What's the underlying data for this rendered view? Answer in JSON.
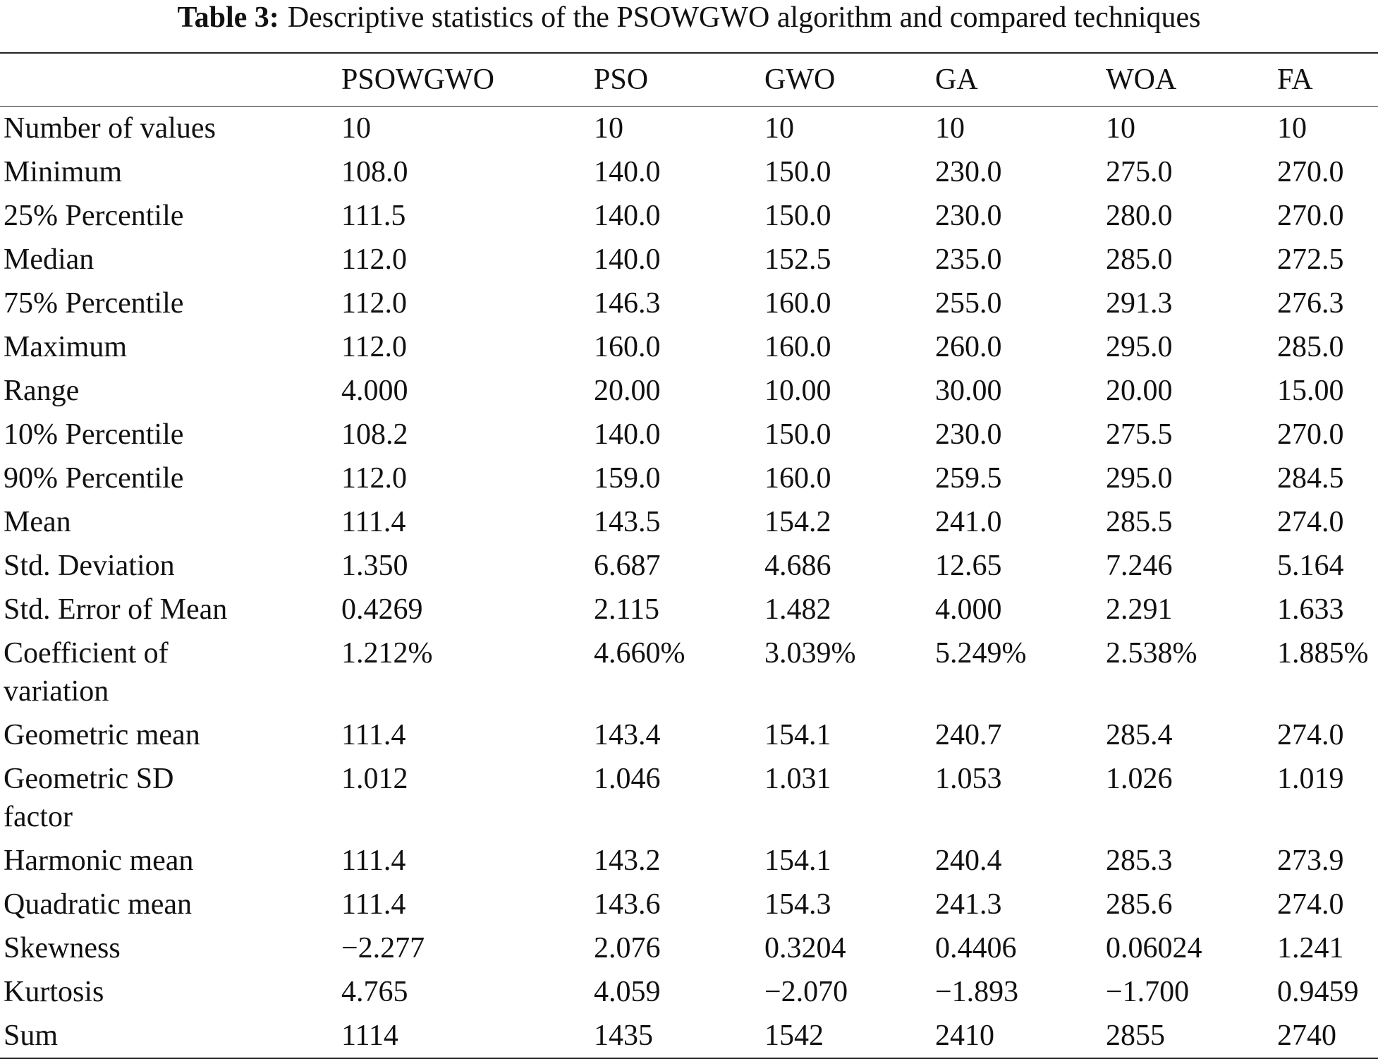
{
  "caption": {
    "label": "Table 3:",
    "text": "Descriptive statistics of the PSOWGWO algorithm and compared techniques"
  },
  "table": {
    "header": [
      "",
      "PSOWGWO",
      "PSO",
      "GWO",
      "GA",
      "WOA",
      "FA"
    ],
    "rows": [
      [
        "Number of values",
        "10",
        "10",
        "10",
        "10",
        "10",
        "10"
      ],
      [
        "Minimum",
        "108.0",
        "140.0",
        "150.0",
        "230.0",
        "275.0",
        "270.0"
      ],
      [
        "25% Percentile",
        "111.5",
        "140.0",
        "150.0",
        "230.0",
        "280.0",
        "270.0"
      ],
      [
        "Median",
        "112.0",
        "140.0",
        "152.5",
        "235.0",
        "285.0",
        "272.5"
      ],
      [
        "75% Percentile",
        "112.0",
        "146.3",
        "160.0",
        "255.0",
        "291.3",
        "276.3"
      ],
      [
        "Maximum",
        "112.0",
        "160.0",
        "160.0",
        "260.0",
        "295.0",
        "285.0"
      ],
      [
        "Range",
        "4.000",
        "20.00",
        "10.00",
        "30.00",
        "20.00",
        "15.00"
      ],
      [
        "10% Percentile",
        "108.2",
        "140.0",
        "150.0",
        "230.0",
        "275.5",
        "270.0"
      ],
      [
        "90% Percentile",
        "112.0",
        "159.0",
        "160.0",
        "259.5",
        "295.0",
        "284.5"
      ],
      [
        "Mean",
        "111.4",
        "143.5",
        "154.2",
        "241.0",
        "285.5",
        "274.0"
      ],
      [
        "Std. Deviation",
        "1.350",
        "6.687",
        "4.686",
        "12.65",
        "7.246",
        "5.164"
      ],
      [
        "Std. Error of Mean",
        "0.4269",
        "2.115",
        "1.482",
        "4.000",
        "2.291",
        "1.633"
      ],
      [
        "Coefficient of variation",
        "1.212%",
        "4.660%",
        "3.039%",
        "5.249%",
        "2.538%",
        "1.885%"
      ],
      [
        "Geometric mean",
        "111.4",
        "143.4",
        "154.1",
        "240.7",
        "285.4",
        "274.0"
      ],
      [
        "Geometric SD factor",
        "1.012",
        "1.046",
        "1.031",
        "1.053",
        "1.026",
        "1.019"
      ],
      [
        "Harmonic mean",
        "111.4",
        "143.2",
        "154.1",
        "240.4",
        "285.3",
        "273.9"
      ],
      [
        "Quadratic mean",
        "111.4",
        "143.6",
        "154.3",
        "241.3",
        "285.6",
        "274.0"
      ],
      [
        "Skewness",
        "−2.277",
        "2.076",
        "0.3204",
        "0.4406",
        "0.06024",
        "1.241"
      ],
      [
        "Kurtosis",
        "4.765",
        "4.059",
        "−2.070",
        "−1.893",
        "−1.700",
        "0.9459"
      ],
      [
        "Sum",
        "1114",
        "1435",
        "1542",
        "2410",
        "2855",
        "2740"
      ]
    ]
  }
}
